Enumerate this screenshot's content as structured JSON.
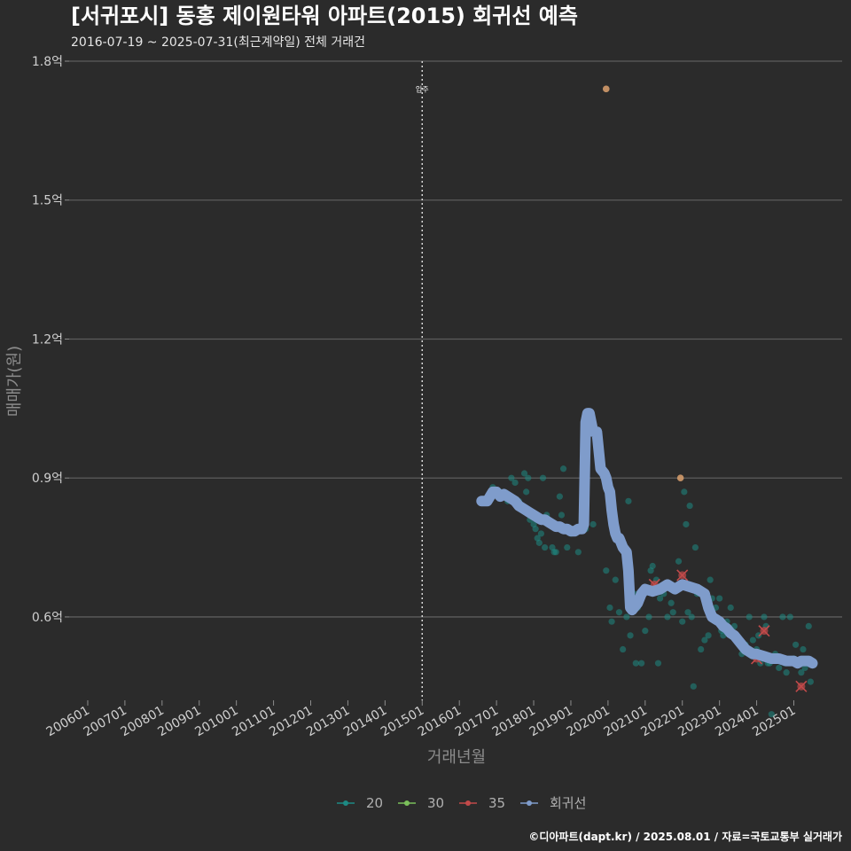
{
  "chart_data": {
    "type": "scatter",
    "title": "[서귀포시] 동홍 제이원타워 아파트(2015) 회귀선 예측",
    "subtitle": "2016-07-19 ~ 2025-07-31(최근계약일) 전체 거래건",
    "xlabel": "거래년월",
    "ylabel": "매매가(원)",
    "ylim": [
      0.42,
      1.8
    ],
    "yticks": [
      0.6,
      0.9,
      1.2,
      1.5,
      1.8
    ],
    "ytick_labels": [
      "0.6억",
      "0.9억",
      "1.2억",
      "1.5억",
      "1.8억"
    ],
    "xlim": [
      2005.5,
      2026.3
    ],
    "xticks": [
      2006,
      2007,
      2008,
      2009,
      2010,
      2011,
      2012,
      2013,
      2014,
      2015,
      2016,
      2017,
      2018,
      2019,
      2020,
      2021,
      2022,
      2023,
      2024,
      2025
    ],
    "xtick_labels": [
      "200601",
      "200701",
      "200801",
      "200901",
      "201001",
      "201101",
      "201201",
      "201301",
      "201401",
      "201501",
      "201601",
      "201701",
      "201801",
      "201901",
      "202001",
      "202101",
      "202201",
      "202301",
      "202401",
      "202501"
    ],
    "grid": true,
    "annotation": {
      "label": "입주",
      "x": 2015.0
    },
    "colors": {
      "20": "#1d8a84",
      "30": "#7bc05b",
      "35": "#c24a4a",
      "regression": "#7f9ccb",
      "highlight": "#d29a6a"
    },
    "legend": {
      "position": "bottom",
      "items": [
        {
          "key": "20",
          "label": "20"
        },
        {
          "key": "30",
          "label": "30"
        },
        {
          "key": "35",
          "label": "35"
        },
        {
          "key": "regression",
          "label": "회귀선"
        }
      ]
    },
    "series": [
      {
        "name": "20",
        "points": [
          [
            2016.6,
            0.85
          ],
          [
            2016.8,
            0.86
          ],
          [
            2016.9,
            0.88
          ],
          [
            2017.0,
            0.87
          ],
          [
            2017.1,
            0.87
          ],
          [
            2017.2,
            0.86
          ],
          [
            2017.3,
            0.85
          ],
          [
            2017.4,
            0.9
          ],
          [
            2017.5,
            0.89
          ],
          [
            2017.6,
            0.85
          ],
          [
            2017.7,
            0.83
          ],
          [
            2017.75,
            0.91
          ],
          [
            2017.8,
            0.87
          ],
          [
            2017.85,
            0.9
          ],
          [
            2017.9,
            0.81
          ],
          [
            2017.95,
            0.82
          ],
          [
            2018.0,
            0.8
          ],
          [
            2018.05,
            0.79
          ],
          [
            2018.1,
            0.77
          ],
          [
            2018.15,
            0.76
          ],
          [
            2018.2,
            0.78
          ],
          [
            2018.25,
            0.9
          ],
          [
            2018.3,
            0.75
          ],
          [
            2018.35,
            0.82
          ],
          [
            2018.4,
            0.8
          ],
          [
            2018.5,
            0.75
          ],
          [
            2018.55,
            0.74
          ],
          [
            2018.6,
            0.74
          ],
          [
            2018.7,
            0.86
          ],
          [
            2018.75,
            0.82
          ],
          [
            2018.8,
            0.92
          ],
          [
            2018.9,
            0.75
          ],
          [
            2019.0,
            0.78
          ],
          [
            2019.2,
            0.74
          ],
          [
            2019.4,
            0.79
          ],
          [
            2019.6,
            0.8
          ],
          [
            2019.95,
            0.7
          ],
          [
            2020.05,
            0.62
          ],
          [
            2020.1,
            0.59
          ],
          [
            2020.2,
            0.68
          ],
          [
            2020.3,
            0.61
          ],
          [
            2020.4,
            0.53
          ],
          [
            2020.5,
            0.6
          ],
          [
            2020.55,
            0.85
          ],
          [
            2020.6,
            0.56
          ],
          [
            2020.7,
            0.65
          ],
          [
            2020.75,
            0.5
          ],
          [
            2020.8,
            0.62
          ],
          [
            2020.9,
            0.5
          ],
          [
            2021.0,
            0.57
          ],
          [
            2021.05,
            0.66
          ],
          [
            2021.1,
            0.6
          ],
          [
            2021.15,
            0.7
          ],
          [
            2021.2,
            0.71
          ],
          [
            2021.3,
            0.68
          ],
          [
            2021.35,
            0.5
          ],
          [
            2021.4,
            0.64
          ],
          [
            2021.5,
            0.65
          ],
          [
            2021.6,
            0.6
          ],
          [
            2021.7,
            0.63
          ],
          [
            2021.75,
            0.61
          ],
          [
            2021.8,
            0.66
          ],
          [
            2021.9,
            0.72
          ],
          [
            2022.0,
            0.59
          ],
          [
            2022.05,
            0.87
          ],
          [
            2022.1,
            0.8
          ],
          [
            2022.15,
            0.61
          ],
          [
            2022.2,
            0.84
          ],
          [
            2022.25,
            0.6
          ],
          [
            2022.3,
            0.45
          ],
          [
            2022.35,
            0.75
          ],
          [
            2022.4,
            0.65
          ],
          [
            2022.5,
            0.53
          ],
          [
            2022.6,
            0.55
          ],
          [
            2022.7,
            0.56
          ],
          [
            2022.75,
            0.68
          ],
          [
            2022.8,
            0.64
          ],
          [
            2022.9,
            0.62
          ],
          [
            2023.0,
            0.64
          ],
          [
            2023.05,
            0.57
          ],
          [
            2023.1,
            0.56
          ],
          [
            2023.2,
            0.59
          ],
          [
            2023.3,
            0.62
          ],
          [
            2023.35,
            0.56
          ],
          [
            2023.4,
            0.58
          ],
          [
            2023.5,
            0.55
          ],
          [
            2023.6,
            0.52
          ],
          [
            2023.7,
            0.54
          ],
          [
            2023.8,
            0.6
          ],
          [
            2023.9,
            0.55
          ],
          [
            2024.0,
            0.53
          ],
          [
            2024.05,
            0.56
          ],
          [
            2024.1,
            0.5
          ],
          [
            2024.15,
            0.52
          ],
          [
            2024.2,
            0.6
          ],
          [
            2024.25,
            0.58
          ],
          [
            2024.3,
            0.5
          ],
          [
            2024.35,
            0.5
          ],
          [
            2024.4,
            0.39
          ],
          [
            2024.5,
            0.52
          ],
          [
            2024.6,
            0.49
          ],
          [
            2024.7,
            0.6
          ],
          [
            2024.75,
            0.5
          ],
          [
            2024.8,
            0.48
          ],
          [
            2024.9,
            0.6
          ],
          [
            2025.0,
            0.51
          ],
          [
            2025.05,
            0.54
          ],
          [
            2025.1,
            0.5
          ],
          [
            2025.2,
            0.48
          ],
          [
            2025.25,
            0.53
          ],
          [
            2025.3,
            0.49
          ],
          [
            2025.4,
            0.58
          ],
          [
            2025.45,
            0.46
          ]
        ]
      },
      {
        "name": "35",
        "points": [
          [
            2021.25,
            0.67
          ],
          [
            2022.0,
            0.69
          ],
          [
            2024.0,
            0.51
          ],
          [
            2024.2,
            0.57
          ],
          [
            2025.2,
            0.45
          ]
        ]
      },
      {
        "name": "highlight",
        "points": [
          [
            2019.95,
            1.74
          ],
          [
            2021.95,
            0.9
          ]
        ]
      }
    ],
    "regression": {
      "x": [
        2016.6,
        2016.75,
        2016.9,
        2017.0,
        2017.1,
        2017.2,
        2017.3,
        2017.4,
        2017.5,
        2017.6,
        2017.7,
        2017.8,
        2017.9,
        2018.0,
        2018.1,
        2018.2,
        2018.3,
        2018.4,
        2018.5,
        2018.6,
        2018.7,
        2018.8,
        2018.9,
        2019.0,
        2019.1,
        2019.2,
        2019.3,
        2019.35,
        2019.4,
        2019.45,
        2019.5,
        2019.55,
        2019.6,
        2019.65,
        2019.7,
        2019.8,
        2019.9,
        2019.95,
        2020.0,
        2020.05,
        2020.1,
        2020.15,
        2020.2,
        2020.25,
        2020.3,
        2020.4,
        2020.5,
        2020.55,
        2020.6,
        2020.65,
        2020.7,
        2020.8,
        2020.9,
        2021.0,
        2021.2,
        2021.4,
        2021.6,
        2021.8,
        2022.0,
        2022.2,
        2022.4,
        2022.5,
        2022.6,
        2022.7,
        2022.8,
        2022.9,
        2023.0,
        2023.1,
        2023.2,
        2023.3,
        2023.4,
        2023.5,
        2023.6,
        2023.7,
        2023.8,
        2023.9,
        2024.0,
        2024.2,
        2024.4,
        2024.6,
        2024.8,
        2025.0,
        2025.1,
        2025.2,
        2025.3,
        2025.4,
        2025.5
      ],
      "y": [
        0.85,
        0.85,
        0.87,
        0.87,
        0.86,
        0.865,
        0.86,
        0.855,
        0.85,
        0.84,
        0.835,
        0.83,
        0.825,
        0.82,
        0.815,
        0.81,
        0.81,
        0.805,
        0.8,
        0.795,
        0.795,
        0.79,
        0.79,
        0.785,
        0.785,
        0.79,
        0.79,
        0.8,
        1.02,
        1.04,
        1.04,
        1.02,
        1.0,
        1.0,
        1.0,
        0.92,
        0.91,
        0.9,
        0.88,
        0.87,
        0.83,
        0.8,
        0.78,
        0.77,
        0.77,
        0.75,
        0.74,
        0.7,
        0.62,
        0.615,
        0.62,
        0.63,
        0.65,
        0.66,
        0.655,
        0.66,
        0.67,
        0.66,
        0.67,
        0.665,
        0.66,
        0.655,
        0.65,
        0.62,
        0.6,
        0.595,
        0.59,
        0.58,
        0.575,
        0.565,
        0.56,
        0.55,
        0.54,
        0.53,
        0.525,
        0.52,
        0.52,
        0.515,
        0.51,
        0.51,
        0.505,
        0.505,
        0.5,
        0.505,
        0.505,
        0.505,
        0.5
      ]
    },
    "caption": "©디아파트(dapt.kr) / 2025.08.01 / 자료=국토교통부 실거래가"
  }
}
